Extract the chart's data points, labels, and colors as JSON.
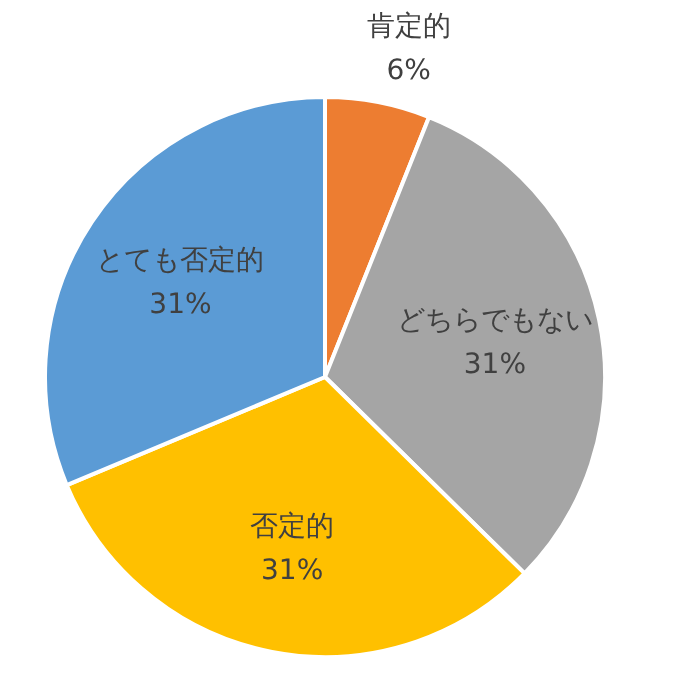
{
  "chart_data": {
    "type": "pie",
    "categories": [
      "肯定的",
      "どちらでもない",
      "否定的",
      "とても否定的"
    ],
    "values": [
      6,
      31,
      31,
      31
    ],
    "colors": [
      "#ed7d31",
      "#a5a5a5",
      "#ffc000",
      "#5b9bd5"
    ],
    "value_labels": [
      "6%",
      "31%",
      "31%",
      "31%"
    ]
  }
}
